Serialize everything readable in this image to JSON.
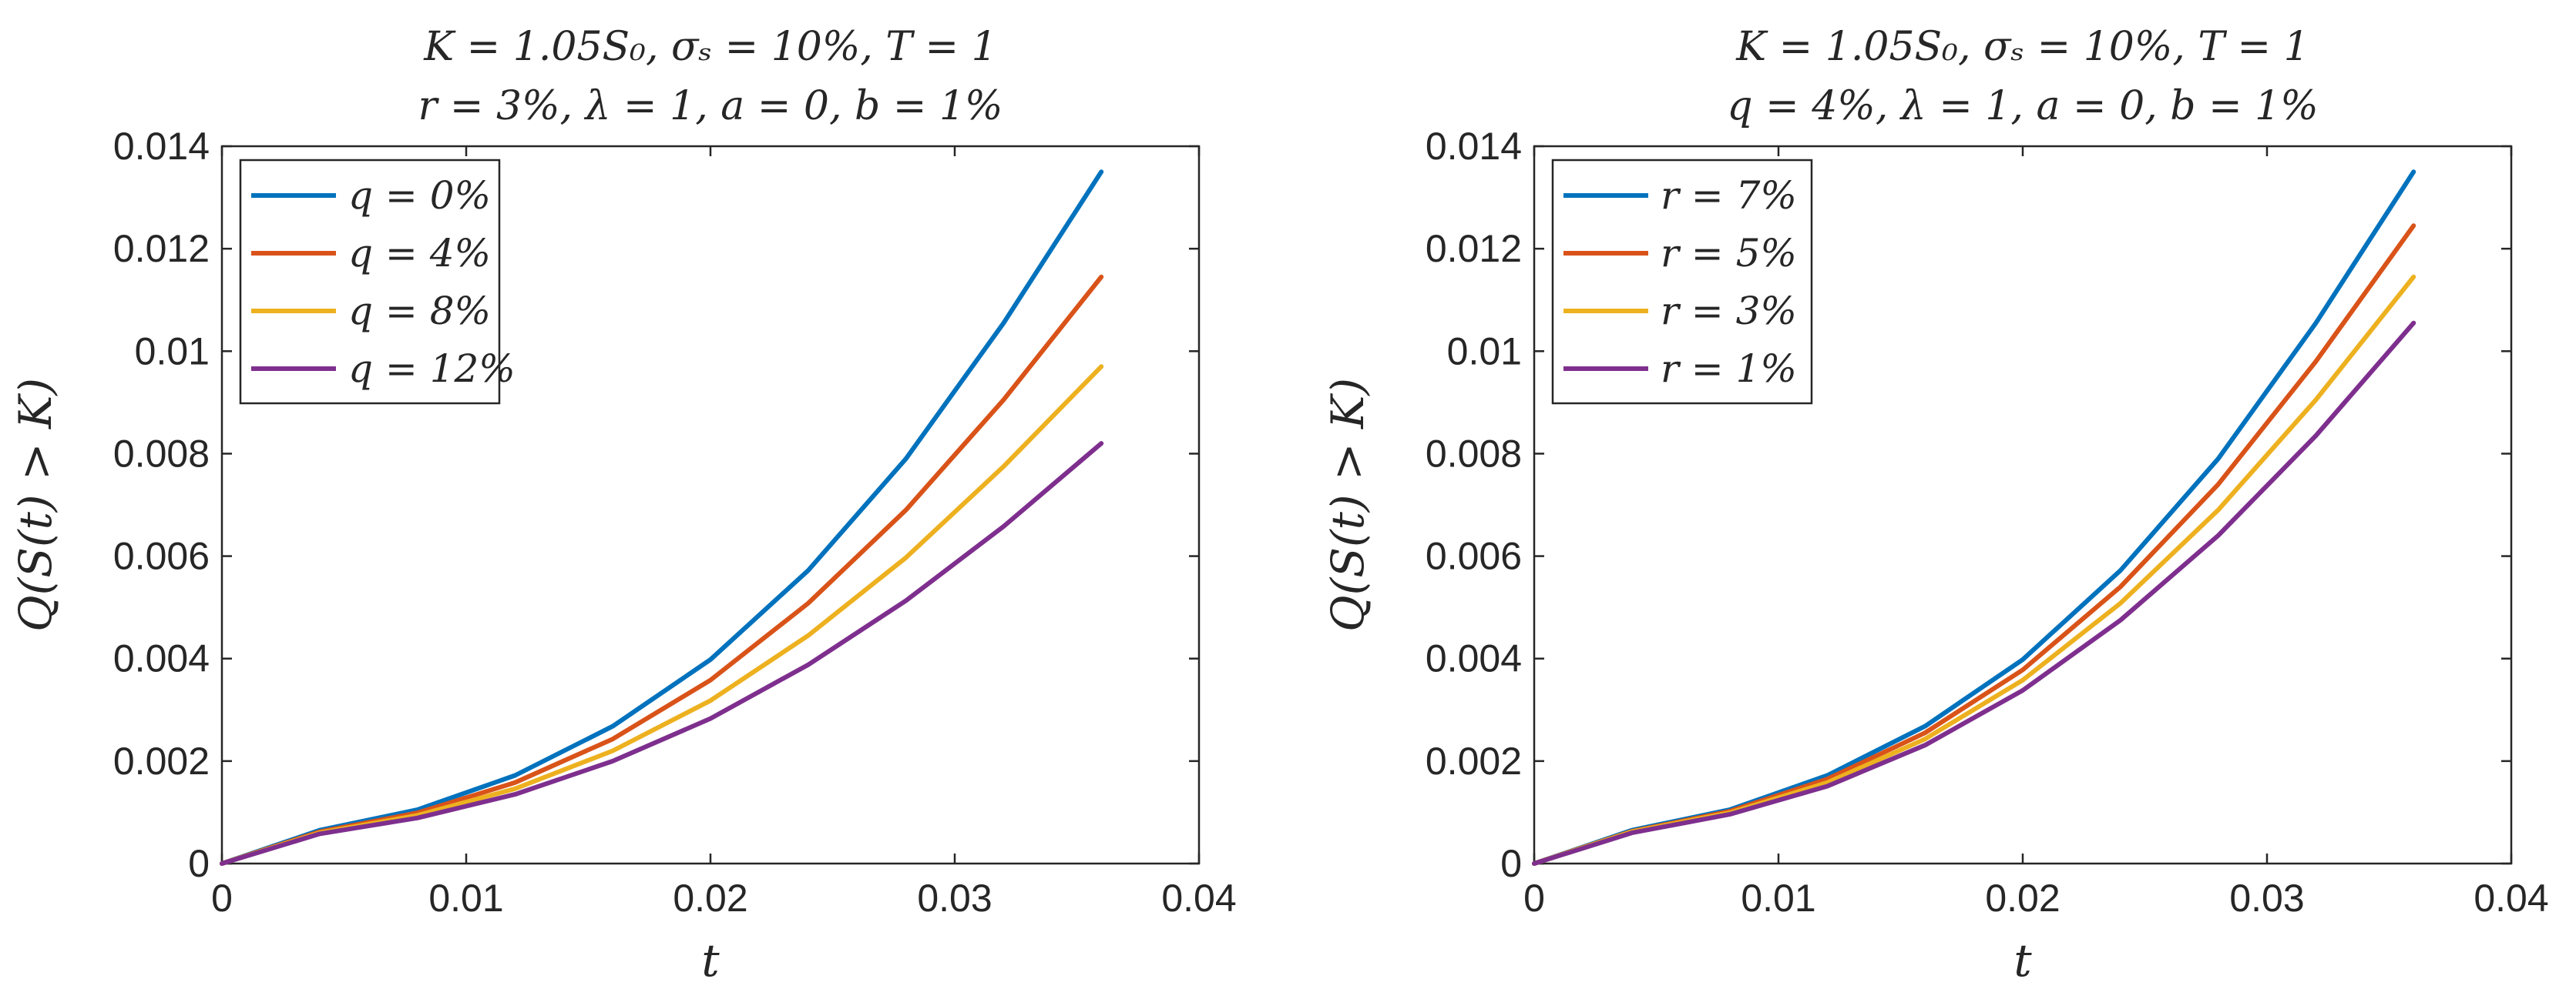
{
  "chart_data": [
    {
      "type": "line",
      "title": [
        "K = 1.05S₀, σₛ = 10%, T = 1",
        "r = 3%, λ = 1, a = 0, b = 1%"
      ],
      "xlabel": "t",
      "ylabel": "Q(S(t) > K)",
      "xlim": [
        0,
        0.04
      ],
      "ylim": [
        0,
        0.014
      ],
      "xticks": [
        0,
        0.01,
        0.02,
        0.03,
        0.04
      ],
      "xtick_labels": [
        "0",
        "0.01",
        "0.02",
        "0.03",
        "0.04"
      ],
      "yticks": [
        0,
        0.002,
        0.004,
        0.006,
        0.008,
        0.01,
        0.012,
        0.014
      ],
      "ytick_labels": [
        "0",
        "0.002",
        "0.004",
        "0.006",
        "0.008",
        "0.01",
        "0.012",
        "0.014"
      ],
      "legend_position": "top-left",
      "x": [
        0,
        0.004,
        0.008,
        0.012,
        0.016,
        0.02,
        0.024,
        0.028,
        0.032,
        0.036
      ],
      "series": [
        {
          "name": "q = 0%",
          "color": "#0072BD",
          "values": [
            0,
            0.00065,
            0.00105,
            0.00172,
            0.00268,
            0.00398,
            0.00572,
            0.0079,
            0.01055,
            0.0135
          ]
        },
        {
          "name": "q = 4%",
          "color": "#D95319",
          "values": [
            0,
            0.00062,
            0.00099,
            0.00158,
            0.00243,
            0.00358,
            0.00508,
            0.0069,
            0.00905,
            0.01145
          ]
        },
        {
          "name": "q = 8%",
          "color": "#EDB120",
          "values": [
            0,
            0.0006,
            0.00094,
            0.00146,
            0.0022,
            0.00318,
            0.00445,
            0.00597,
            0.00775,
            0.0097
          ]
        },
        {
          "name": "q = 12%",
          "color": "#7E2F8E",
          "values": [
            0,
            0.00058,
            0.00089,
            0.00135,
            0.002,
            0.00283,
            0.00388,
            0.00513,
            0.00658,
            0.0082
          ]
        }
      ]
    },
    {
      "type": "line",
      "title": [
        "K = 1.05S₀, σₛ = 10%, T = 1",
        "q = 4%, λ = 1, a = 0, b = 1%"
      ],
      "xlabel": "t",
      "ylabel": "Q(S(t) > K)",
      "xlim": [
        0,
        0.04
      ],
      "ylim": [
        0,
        0.014
      ],
      "xticks": [
        0,
        0.01,
        0.02,
        0.03,
        0.04
      ],
      "xtick_labels": [
        "0",
        "0.01",
        "0.02",
        "0.03",
        "0.04"
      ],
      "yticks": [
        0,
        0.002,
        0.004,
        0.006,
        0.008,
        0.01,
        0.012,
        0.014
      ],
      "ytick_labels": [
        "0",
        "0.002",
        "0.004",
        "0.006",
        "0.008",
        "0.01",
        "0.012",
        "0.014"
      ],
      "legend_position": "top-left",
      "x": [
        0,
        0.004,
        0.008,
        0.012,
        0.016,
        0.02,
        0.024,
        0.028,
        0.032,
        0.036
      ],
      "series": [
        {
          "name": "r = 7%",
          "color": "#0072BD",
          "values": [
            0,
            0.00065,
            0.00105,
            0.00172,
            0.00268,
            0.00398,
            0.00572,
            0.0079,
            0.01055,
            0.0135
          ]
        },
        {
          "name": "r = 5%",
          "color": "#D95319",
          "values": [
            0,
            0.00063,
            0.00102,
            0.00165,
            0.00255,
            0.00378,
            0.0054,
            0.0074,
            0.0098,
            0.01245
          ]
        },
        {
          "name": "r = 3%",
          "color": "#EDB120",
          "values": [
            0,
            0.00062,
            0.00099,
            0.00158,
            0.00243,
            0.00358,
            0.00508,
            0.0069,
            0.00905,
            0.01145
          ]
        },
        {
          "name": "r = 1%",
          "color": "#7E2F8E",
          "values": [
            0,
            0.0006,
            0.00096,
            0.00151,
            0.00231,
            0.00338,
            0.00475,
            0.0064,
            0.00835,
            0.01055
          ]
        }
      ]
    }
  ]
}
